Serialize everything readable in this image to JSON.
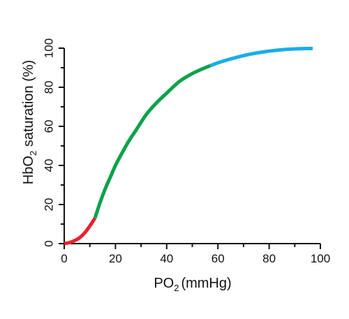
{
  "chart_data": {
    "type": "line",
    "title": "",
    "xlabel": "PO",
    "xlabel_subscript": "2",
    "xlabel_suffix": "(mmHg)",
    "ylabel": "HbO",
    "ylabel_subscript": "2",
    "ylabel_suffix": " saturation (%)",
    "xlim": [
      0,
      100
    ],
    "ylim": [
      0,
      100
    ],
    "x_ticks": [
      0,
      20,
      40,
      60,
      80,
      100
    ],
    "y_ticks": [
      0,
      20,
      40,
      60,
      80,
      100
    ],
    "x_minor_step": 10,
    "y_minor_step": 10,
    "grid": false,
    "legend": "none",
    "series": [
      {
        "color": "#e8232f",
        "x": [
          0,
          2,
          4,
          6,
          8,
          10,
          12
        ],
        "y": [
          0,
          0.5,
          1.5,
          3,
          5.5,
          9,
          13
        ]
      },
      {
        "color": "#0ba24a",
        "x": [
          12,
          14,
          16,
          18,
          20,
          22,
          25,
          28,
          32,
          36,
          40,
          45,
          50,
          55,
          57
        ],
        "y": [
          13,
          21,
          28,
          34,
          40,
          45,
          52,
          58,
          66,
          72,
          77,
          83,
          87,
          90,
          91
        ]
      },
      {
        "color": "#18aee6",
        "x": [
          57,
          60,
          65,
          70,
          75,
          80,
          85,
          90,
          95,
          97
        ],
        "y": [
          91,
          92.5,
          94.5,
          96.2,
          97.5,
          98.5,
          99.2,
          99.6,
          99.8,
          99.8
        ]
      }
    ]
  }
}
